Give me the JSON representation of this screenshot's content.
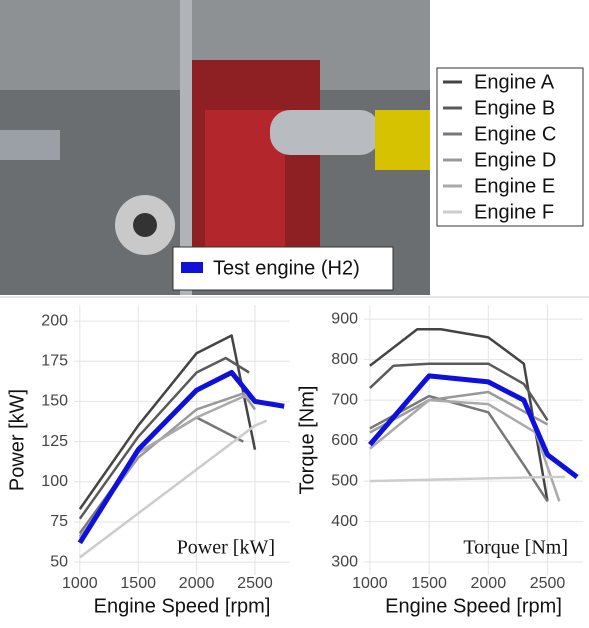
{
  "chart_data": [
    {
      "type": "line",
      "xlabel": "Engine Speed [rpm]",
      "ylabel": "Power [kW]",
      "annotation": "Power [kW]",
      "xlim": [
        950,
        2800
      ],
      "xticks": [
        1000,
        1500,
        2000,
        2500
      ],
      "ylim": [
        42,
        210
      ],
      "yticks": [
        50,
        75,
        100,
        125,
        150,
        175,
        200
      ],
      "grid": true,
      "series": [
        {
          "name": "Engine A",
          "color": "#444444",
          "x": [
            1000,
            1500,
            2000,
            2300,
            2500
          ],
          "values": [
            83,
            135,
            180,
            191,
            120
          ]
        },
        {
          "name": "Engine B",
          "color": "#5a5a5a",
          "x": [
            1000,
            1500,
            2000,
            2250,
            2450
          ],
          "values": [
            77,
            128,
            168,
            177,
            168
          ]
        },
        {
          "name": "Engine C",
          "color": "#777777",
          "x": [
            1000,
            1500,
            2000,
            2400
          ],
          "values": [
            68,
            118,
            140,
            125
          ]
        },
        {
          "name": "Engine D",
          "color": "#999999",
          "x": [
            1000,
            1500,
            2000,
            2400,
            2500
          ],
          "values": [
            66,
            115,
            145,
            155,
            145
          ]
        },
        {
          "name": "Engine E",
          "color": "#aaaaaa",
          "x": [
            1000,
            1500,
            2000,
            2400,
            2550
          ],
          "values": [
            65,
            118,
            140,
            153,
            150
          ]
        },
        {
          "name": "Engine F",
          "color": "#cccccc",
          "x": [
            1000,
            2500,
            2600
          ],
          "values": [
            53,
            135,
            138
          ]
        },
        {
          "name": "Test engine (H2)",
          "color": "#1010dd",
          "x": [
            1000,
            1500,
            2000,
            2300,
            2500,
            2750
          ],
          "values": [
            62,
            120,
            157,
            168,
            150,
            147
          ]
        }
      ]
    },
    {
      "type": "line",
      "xlabel": "Engine Speed [rpm]",
      "ylabel": "Torque [Nm]",
      "annotation": "Torque [Nm]",
      "xlim": [
        950,
        2800
      ],
      "xticks": [
        1000,
        1500,
        2000,
        2500
      ],
      "ylim": [
        268,
        935
      ],
      "yticks": [
        300,
        400,
        500,
        600,
        700,
        800,
        900
      ],
      "grid": true,
      "series": [
        {
          "name": "Engine A",
          "color": "#444444",
          "x": [
            1000,
            1400,
            1600,
            2000,
            2300,
            2500
          ],
          "values": [
            785,
            875,
            875,
            855,
            790,
            450
          ]
        },
        {
          "name": "Engine B",
          "color": "#5a5a5a",
          "x": [
            1000,
            1200,
            1500,
            2000,
            2300,
            2500
          ],
          "values": [
            730,
            785,
            790,
            790,
            740,
            650
          ]
        },
        {
          "name": "Engine C",
          "color": "#777777",
          "x": [
            1000,
            1500,
            2000,
            2300,
            2500
          ],
          "values": [
            630,
            710,
            670,
            540,
            450
          ]
        },
        {
          "name": "Engine D",
          "color": "#999999",
          "x": [
            1000,
            1500,
            2000,
            2500
          ],
          "values": [
            620,
            700,
            720,
            640
          ]
        },
        {
          "name": "Engine E",
          "color": "#aaaaaa",
          "x": [
            1000,
            1500,
            2000,
            2400,
            2600
          ],
          "values": [
            580,
            700,
            690,
            620,
            450
          ]
        },
        {
          "name": "Engine F",
          "color": "#cccccc",
          "x": [
            1000,
            2500,
            2650
          ],
          "values": [
            500,
            510,
            510
          ]
        },
        {
          "name": "Test engine (H2)",
          "color": "#1010dd",
          "x": [
            1000,
            1500,
            2000,
            2300,
            2500,
            2750
          ],
          "values": [
            590,
            760,
            745,
            700,
            565,
            510
          ]
        }
      ]
    }
  ]
}
